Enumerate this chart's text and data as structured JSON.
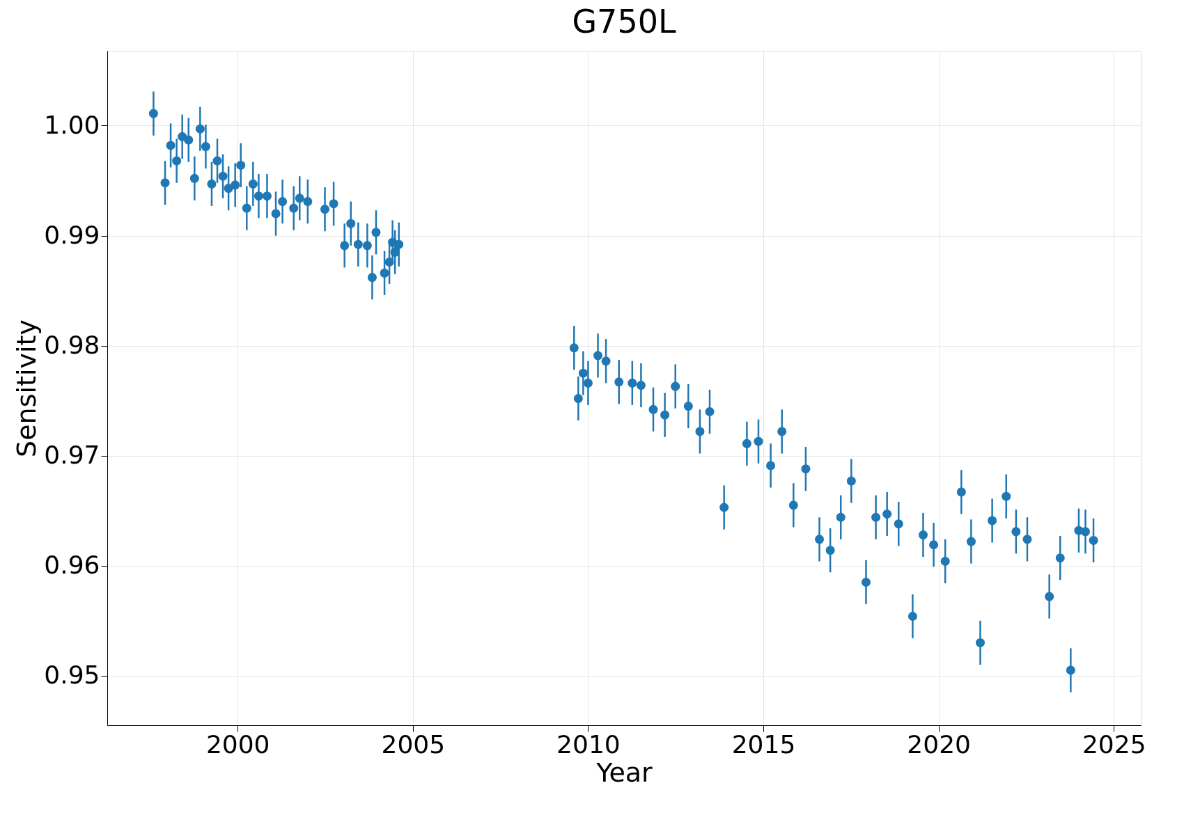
{
  "chart_data": {
    "type": "scatter",
    "title": "G750L",
    "xlabel": "Year",
    "ylabel": "Sensitivity",
    "x": [
      1997.6,
      1997.93,
      1998.09,
      1998.26,
      1998.42,
      1998.6,
      1998.77,
      1998.93,
      1999.09,
      1999.26,
      1999.42,
      1999.58,
      1999.74,
      1999.93,
      2000.09,
      2000.26,
      2000.44,
      2000.6,
      2000.84,
      2001.09,
      2001.28,
      2001.6,
      2001.77,
      2002.0,
      2002.49,
      2002.74,
      2003.05,
      2003.23,
      2003.44,
      2003.7,
      2003.84,
      2003.95,
      2004.19,
      2004.33,
      2004.42,
      2004.49,
      2004.6,
      2009.6,
      2009.72,
      2009.86,
      2010.0,
      2010.28,
      2010.51,
      2010.88,
      2011.26,
      2011.51,
      2011.86,
      2012.19,
      2012.49,
      2012.86,
      2013.19,
      2013.47,
      2013.88,
      2014.53,
      2014.86,
      2015.21,
      2015.53,
      2015.86,
      2016.21,
      2016.6,
      2016.91,
      2017.21,
      2017.51,
      2017.93,
      2018.21,
      2018.53,
      2018.86,
      2019.26,
      2019.56,
      2019.86,
      2020.19,
      2020.65,
      2020.93,
      2021.19,
      2021.53,
      2021.93,
      2022.21,
      2022.53,
      2023.16,
      2023.47,
      2023.77,
      2024.0,
      2024.19,
      2024.42
    ],
    "series": [
      {
        "color": "#1f77b4",
        "values": [
          1.0011,
          0.9948,
          0.9982,
          0.9968,
          0.999,
          0.9987,
          0.9952,
          0.9997,
          0.9981,
          0.9947,
          0.9968,
          0.9954,
          0.9943,
          0.9946,
          0.9964,
          0.9925,
          0.9947,
          0.9936,
          0.9936,
          0.992,
          0.9931,
          0.9925,
          0.9934,
          0.9931,
          0.9924,
          0.9929,
          0.9891,
          0.9911,
          0.9892,
          0.9891,
          0.9862,
          0.9903,
          0.9866,
          0.9876,
          0.9894,
          0.9885,
          0.9892,
          0.9798,
          0.9752,
          0.9775,
          0.9766,
          0.9791,
          0.9786,
          0.9767,
          0.9766,
          0.9764,
          0.9742,
          0.9737,
          0.9763,
          0.9745,
          0.9722,
          0.974,
          0.9653,
          0.9711,
          0.9713,
          0.9691,
          0.9722,
          0.9655,
          0.9688,
          0.9624,
          0.9614,
          0.9644,
          0.9677,
          0.9585,
          0.9644,
          0.9647,
          0.9638,
          0.9554,
          0.9628,
          0.9619,
          0.9604,
          0.9667,
          0.9622,
          0.953,
          0.9641,
          0.9663,
          0.9631,
          0.9624,
          0.9572,
          0.9607,
          0.9505,
          0.9632,
          0.9631,
          0.9623
        ],
        "errors": [
          0.002,
          0.002,
          0.002,
          0.002,
          0.002,
          0.002,
          0.002,
          0.002,
          0.002,
          0.002,
          0.002,
          0.002,
          0.002,
          0.002,
          0.002,
          0.002,
          0.002,
          0.002,
          0.002,
          0.002,
          0.002,
          0.002,
          0.002,
          0.002,
          0.002,
          0.002,
          0.002,
          0.002,
          0.002,
          0.002,
          0.002,
          0.002,
          0.002,
          0.002,
          0.002,
          0.002,
          0.002,
          0.002,
          0.002,
          0.002,
          0.002,
          0.002,
          0.002,
          0.002,
          0.002,
          0.002,
          0.002,
          0.002,
          0.002,
          0.002,
          0.002,
          0.002,
          0.002,
          0.002,
          0.002,
          0.002,
          0.002,
          0.002,
          0.002,
          0.002,
          0.002,
          0.002,
          0.002,
          0.002,
          0.002,
          0.002,
          0.002,
          0.002,
          0.002,
          0.002,
          0.002,
          0.002,
          0.002,
          0.002,
          0.002,
          0.002,
          0.002,
          0.002,
          0.002,
          0.002,
          0.002,
          0.002,
          0.002,
          0.002
        ]
      }
    ],
    "xlim": [
      1996.28,
      2025.77
    ],
    "xticks": [
      2000,
      2005,
      2010,
      2015,
      2020,
      2025
    ],
    "ylim": [
      0.9455,
      1.0068
    ],
    "yticks": [
      {
        "value": 0.95,
        "label": "0.95"
      },
      {
        "value": 0.96,
        "label": "0.96"
      },
      {
        "value": 0.97,
        "label": "0.97"
      },
      {
        "value": 0.98,
        "label": "0.98"
      },
      {
        "value": 0.99,
        "label": "0.99"
      },
      {
        "value": 1.0,
        "label": "1.00"
      }
    ],
    "grid": true,
    "marker": "circle",
    "legend": false
  }
}
